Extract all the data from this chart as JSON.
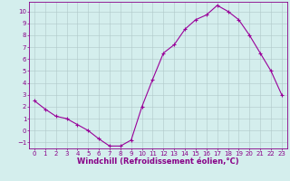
{
  "x": [
    0,
    1,
    2,
    3,
    4,
    5,
    6,
    7,
    8,
    9,
    10,
    11,
    12,
    13,
    14,
    15,
    16,
    17,
    18,
    19,
    20,
    21,
    22,
    23
  ],
  "y": [
    2.5,
    1.8,
    1.2,
    1.0,
    0.5,
    0.0,
    -0.7,
    -1.3,
    -1.3,
    -0.8,
    2.0,
    4.3,
    6.5,
    7.2,
    8.5,
    9.3,
    9.7,
    10.5,
    10.0,
    9.3,
    8.0,
    6.5,
    5.0,
    3.0
  ],
  "line_color": "#990099",
  "marker": "+",
  "marker_size": 3,
  "bg_color": "#d4eeed",
  "grid_color": "#b0c8c8",
  "xlabel": "Windchill (Refroidissement éolien,°C)",
  "xlabel_color": "#880088",
  "tick_color": "#880088",
  "ylim": [
    -1.5,
    10.8
  ],
  "xlim": [
    -0.5,
    23.5
  ],
  "yticks": [
    -1,
    0,
    1,
    2,
    3,
    4,
    5,
    6,
    7,
    8,
    9,
    10
  ],
  "xticks": [
    0,
    1,
    2,
    3,
    4,
    5,
    6,
    7,
    8,
    9,
    10,
    11,
    12,
    13,
    14,
    15,
    16,
    17,
    18,
    19,
    20,
    21,
    22,
    23
  ],
  "spine_color": "#880088",
  "tick_fontsize": 5,
  "xlabel_fontsize": 6
}
